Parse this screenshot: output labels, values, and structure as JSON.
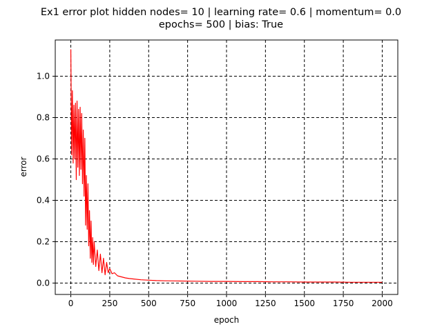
{
  "chart_data": {
    "type": "line",
    "title": [
      "Ex1 error plot hidden nodes= 10 | learning rate= 0.6 | momentum= 0.0",
      "epochs= 500 | bias: True"
    ],
    "xlabel": "epoch",
    "ylabel": "error",
    "xlim": [
      -100,
      2100
    ],
    "ylim": [
      -0.055,
      1.175
    ],
    "x_ticks": [
      0,
      250,
      500,
      750,
      1000,
      1250,
      1500,
      1750,
      2000
    ],
    "x_tick_labels": [
      "0",
      "250",
      "500",
      "750",
      "1000",
      "1250",
      "1500",
      "1750",
      "2000"
    ],
    "y_ticks": [
      0.0,
      0.2,
      0.4,
      0.6,
      0.8,
      1.0
    ],
    "y_tick_labels": [
      "0.0",
      "0.2",
      "0.4",
      "0.6",
      "0.8",
      "1.0"
    ],
    "grid": true,
    "grid_style": "dashed",
    "series": [
      {
        "color": "#ff0000",
        "x": [
          0,
          5,
          10,
          15,
          20,
          25,
          30,
          35,
          40,
          45,
          50,
          55,
          60,
          65,
          70,
          75,
          80,
          85,
          90,
          95,
          100,
          105,
          110,
          115,
          120,
          125,
          130,
          135,
          140,
          145,
          150,
          160,
          170,
          180,
          190,
          200,
          210,
          220,
          230,
          240,
          250,
          265,
          280,
          300,
          325,
          350,
          375,
          400,
          450,
          500,
          550,
          600,
          700,
          800,
          900,
          1000,
          1100,
          1200,
          1300,
          1400,
          1500,
          1600,
          1700,
          1800,
          1900,
          2000
        ],
        "values": [
          1.13,
          0.62,
          0.93,
          0.58,
          0.86,
          0.6,
          0.87,
          0.5,
          0.88,
          0.56,
          0.84,
          0.52,
          0.85,
          0.55,
          0.82,
          0.48,
          0.74,
          0.42,
          0.7,
          0.28,
          0.52,
          0.26,
          0.48,
          0.18,
          0.35,
          0.12,
          0.3,
          0.1,
          0.22,
          0.09,
          0.2,
          0.08,
          0.16,
          0.06,
          0.14,
          0.05,
          0.12,
          0.04,
          0.1,
          0.05,
          0.07,
          0.045,
          0.05,
          0.035,
          0.03,
          0.025,
          0.022,
          0.02,
          0.016,
          0.014,
          0.012,
          0.011,
          0.01,
          0.009,
          0.008,
          0.008,
          0.007,
          0.007,
          0.006,
          0.006,
          0.005,
          0.005,
          0.005,
          0.004,
          0.004,
          0.004
        ]
      }
    ]
  }
}
